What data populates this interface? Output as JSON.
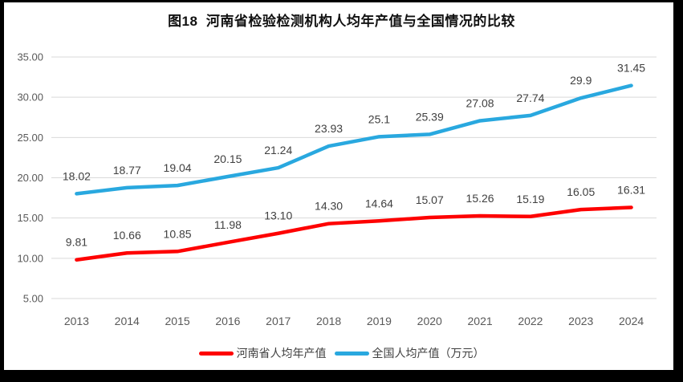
{
  "chart_data": {
    "type": "line",
    "title": "图18  河南省检验检测机构人均年产值与全国情况的比较",
    "categories": [
      "2013",
      "2014",
      "2015",
      "2016",
      "2017",
      "2018",
      "2019",
      "2020",
      "2021",
      "2022",
      "2023",
      "2024"
    ],
    "series": [
      {
        "name": "河南省人均年产值",
        "color": "#FE0000",
        "values": [
          9.81,
          10.66,
          10.85,
          11.98,
          13.1,
          14.3,
          14.64,
          15.07,
          15.26,
          15.19,
          16.05,
          16.31
        ],
        "labels": [
          "9.81",
          "10.66",
          "10.85",
          "11.98",
          "13.10",
          "14.30",
          "14.64",
          "15.07",
          "15.26",
          "15.19",
          "16.05",
          "16.31"
        ]
      },
      {
        "name": "全国人均产值（万元）",
        "color": "#29A8DF",
        "values": [
          18.02,
          18.77,
          19.04,
          20.15,
          21.24,
          23.93,
          25.1,
          25.39,
          27.08,
          27.74,
          29.9,
          31.45
        ],
        "labels": [
          "18.02",
          "18.77",
          "19.04",
          "20.15",
          "21.24",
          "23.93",
          "25.1",
          "25.39",
          "27.08",
          "27.74",
          "29.9",
          "31.45"
        ]
      }
    ],
    "xlabel": "",
    "ylabel": "",
    "ylim": [
      5,
      35
    ],
    "y_ticks": [
      "5.00",
      "10.00",
      "15.00",
      "20.00",
      "25.00",
      "30.00",
      "35.00"
    ],
    "grid": "horizontal-only",
    "legend_position": "bottom",
    "gridline_color": "#D9D9D9",
    "axis_label_color": "#595959",
    "data_label_color": "#404040",
    "frame_color": "#000000",
    "background_color": "#FFFFFF"
  }
}
